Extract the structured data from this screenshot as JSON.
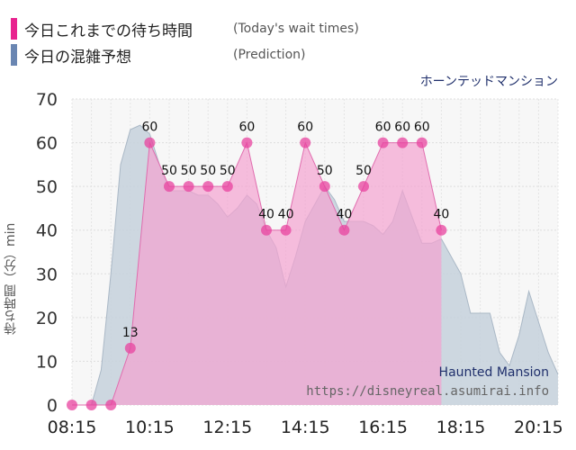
{
  "legend": {
    "today_jp": "今日これまでの待ち時間",
    "today_en": "(Today's wait times)",
    "prediction_jp": "今日の混雑予想",
    "prediction_en": "(Prediction)",
    "colors": {
      "today": "#e8238f",
      "prediction": "#6a86b2"
    }
  },
  "attraction_jp": "ホーンテッドマンション",
  "watermark": {
    "name": "Haunted Mansion",
    "url": "https://disneyreal.asumirai.info"
  },
  "chart_data": {
    "type": "area",
    "ylabel": "待ち時間（分）min",
    "ylim": [
      0,
      70
    ],
    "y_ticks": [
      0,
      10,
      20,
      30,
      40,
      50,
      60,
      70
    ],
    "x_tick_labels": [
      "08:15",
      "10:15",
      "12:15",
      "14:15",
      "16:15",
      "18:15",
      "20:15"
    ],
    "xlim": [
      "08:15",
      "20:45"
    ],
    "grid": true,
    "series": [
      {
        "key": "today",
        "x": [
          "08:15",
          "08:45",
          "09:15",
          "09:45",
          "10:15",
          "10:45",
          "11:15",
          "11:45",
          "12:15",
          "12:45",
          "13:15",
          "13:45",
          "14:15",
          "14:45",
          "15:15",
          "15:45",
          "16:15",
          "16:45",
          "17:15",
          "17:45"
        ],
        "y": [
          0,
          0,
          0,
          13,
          60,
          50,
          50,
          50,
          50,
          60,
          40,
          40,
          60,
          50,
          40,
          50,
          60,
          60,
          60,
          40
        ],
        "labels": [
          "",
          "",
          "",
          "13",
          "60",
          "50",
          "50",
          "50",
          "50",
          "60",
          "40",
          "40",
          "60",
          "50",
          "40",
          "50",
          "60",
          "60",
          "60",
          "40"
        ],
        "fill": "#f4a3d0",
        "point_color": "#e8439f"
      },
      {
        "key": "prediction",
        "x": [
          "08:15",
          "08:45",
          "09:00",
          "09:15",
          "09:30",
          "09:45",
          "10:00",
          "10:15",
          "10:30",
          "10:45",
          "11:00",
          "11:15",
          "11:30",
          "11:45",
          "12:00",
          "12:15",
          "12:30",
          "12:45",
          "13:00",
          "13:15",
          "13:30",
          "13:45",
          "14:00",
          "14:15",
          "14:30",
          "14:45",
          "15:00",
          "15:15",
          "15:30",
          "15:45",
          "16:00",
          "16:15",
          "16:30",
          "16:45",
          "17:00",
          "17:15",
          "17:30",
          "17:45",
          "18:00",
          "18:15",
          "18:30",
          "18:45",
          "19:00",
          "19:15",
          "19:30",
          "19:45",
          "20:00",
          "20:15",
          "20:30",
          "20:45"
        ],
        "y": [
          0,
          0,
          8,
          30,
          55,
          63,
          64,
          62,
          55,
          49,
          49,
          49,
          48,
          48,
          46,
          43,
          45,
          48,
          46,
          40,
          36,
          27,
          34,
          42,
          46,
          50,
          47,
          42,
          42,
          42,
          41,
          39,
          42,
          49,
          43,
          37,
          37,
          38,
          34,
          30,
          21,
          21,
          21,
          12,
          9,
          16,
          26,
          19,
          12,
          7
        ],
        "fill": "#c5d1dc",
        "stroke": "#aab8c6"
      }
    ]
  }
}
